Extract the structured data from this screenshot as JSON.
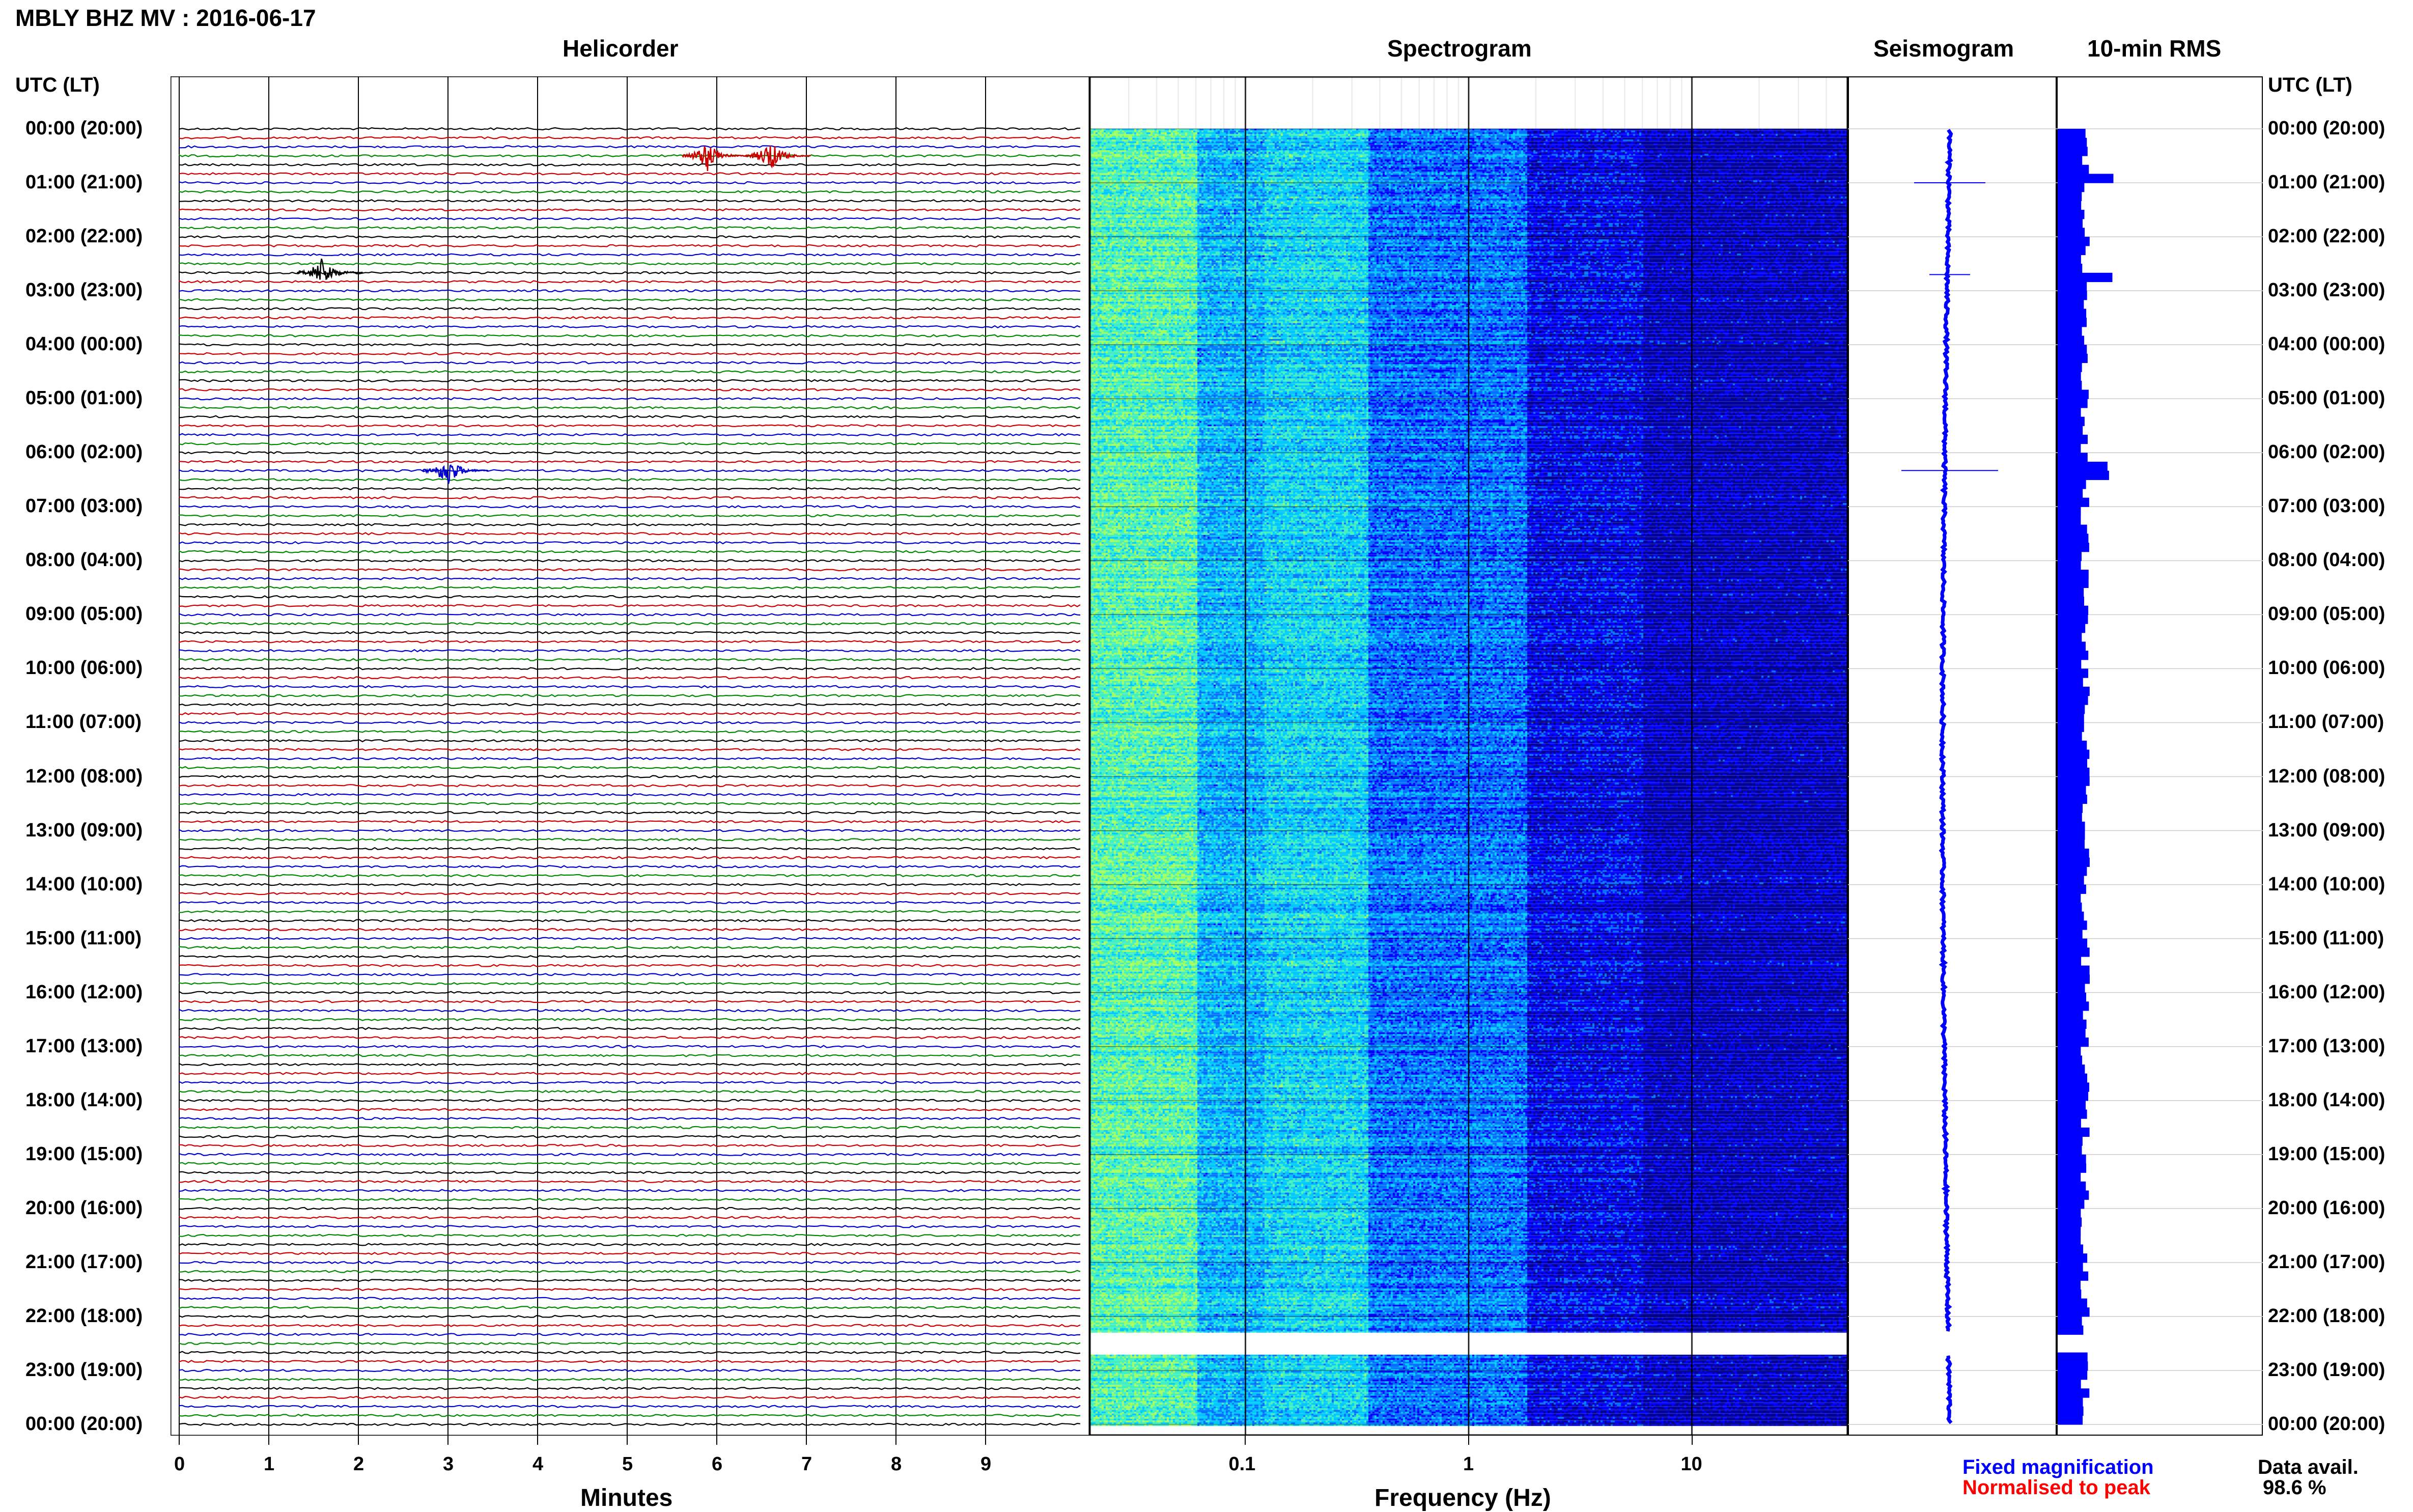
{
  "header": {
    "title": "MBLY BHZ MV : 2016-06-17"
  },
  "panels": {
    "helicorder": "Helicorder",
    "spectrogram": "Spectrogram",
    "seismogram": "Seismogram",
    "rms": "10-min RMS"
  },
  "axes": {
    "time_header_left": "UTC (LT)",
    "time_header_right": "UTC (LT)",
    "hour_labels": [
      "00:00 (20:00)",
      "01:00 (21:00)",
      "02:00 (22:00)",
      "03:00 (23:00)",
      "04:00 (00:00)",
      "05:00 (01:00)",
      "06:00 (02:00)",
      "07:00 (03:00)",
      "08:00 (04:00)",
      "09:00 (05:00)",
      "10:00 (06:00)",
      "11:00 (07:00)",
      "12:00 (08:00)",
      "13:00 (09:00)",
      "14:00 (10:00)",
      "15:00 (11:00)",
      "16:00 (12:00)",
      "17:00 (13:00)",
      "18:00 (14:00)",
      "19:00 (15:00)",
      "20:00 (16:00)",
      "21:00 (17:00)",
      "22:00 (18:00)",
      "23:00 (19:00)",
      "00:00 (20:00)"
    ],
    "minutes_ticks": [
      "0",
      "1",
      "2",
      "3",
      "4",
      "5",
      "6",
      "7",
      "8",
      "9"
    ],
    "minutes_label": "Minutes",
    "freq_ticks": [
      "0.1",
      "1",
      "10"
    ],
    "freq_label": "Frequency (Hz)"
  },
  "legend": {
    "fixed": "Fixed magnification",
    "normalised": "Normalised to peak",
    "fixed_color": "#0000ff",
    "normalised_color": "#ff0000"
  },
  "availability": {
    "label": "Data avail.",
    "value": "98.6 %"
  },
  "chart_data": {
    "type": "heatmap",
    "title": "MBLY BHZ MV : 2016-06-17",
    "helicorder": {
      "xlabel": "Minutes",
      "x_range": [
        0,
        10
      ],
      "rows_per_hour": 6,
      "trace_colors": [
        "#000000",
        "#cc0000",
        "#0000cc",
        "#008800"
      ],
      "events": [
        {
          "hour": 0.5,
          "minute": 6.6,
          "color": "#cc0000"
        },
        {
          "hour": 0.5,
          "minute": 5.9,
          "color": "#cc0000"
        },
        {
          "hour": 2.66,
          "minute": 1.6,
          "color": "#000000"
        },
        {
          "hour": 6.33,
          "minute": 3.0,
          "color": "#0000cc"
        }
      ]
    },
    "spectrogram": {
      "xlabel": "Frequency (Hz)",
      "x_scale": "log",
      "x_range": [
        0.02,
        50
      ],
      "colormap": [
        "#00009a",
        "#0000ff",
        "#0070ff",
        "#00c8ff",
        "#40f0c0",
        "#a0ff60"
      ],
      "gap_hours": [
        22.3,
        22.7
      ]
    },
    "seismogram": {
      "gap_hours": [
        22.3,
        22.7
      ],
      "spikes_hours": [
        1.0,
        2.7,
        6.33
      ]
    },
    "rms": {
      "unit": "relative",
      "high_hours": [
        0.9,
        2.75,
        6.33
      ],
      "gap_hours": [
        22.3,
        22.7
      ]
    },
    "y_axis": {
      "label": "UTC (LT)",
      "range_hours": [
        0,
        24
      ]
    },
    "data_availability_percent": 98.6
  }
}
